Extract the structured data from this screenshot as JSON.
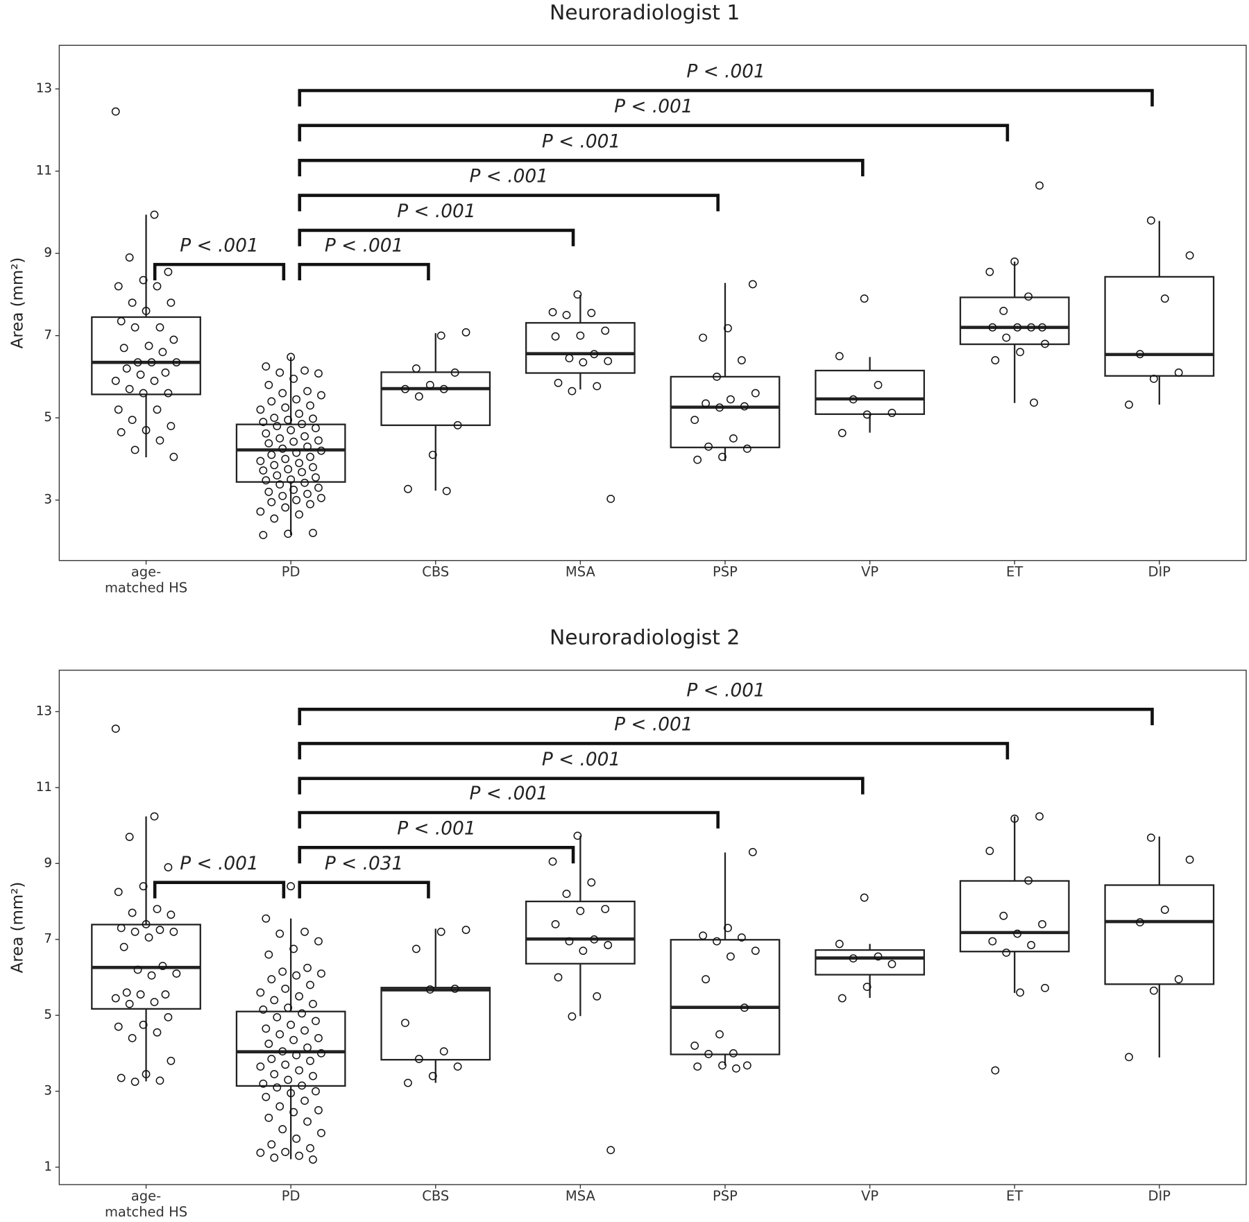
{
  "chart_data": [
    {
      "type": "box",
      "title": "Neuroradiologist 1",
      "y_label": "Area (mm²)",
      "categories": [
        "age-matched HS",
        "PD",
        "CBS",
        "MSA",
        "PSP",
        "VP",
        "ET",
        "DIP"
      ],
      "ylim": [
        1.53,
        14.06
      ],
      "yticks": [
        3,
        5,
        7,
        9,
        11,
        13
      ],
      "boxes": [
        {
          "q1": 5.57,
          "median": 6.35,
          "q3": 7.45,
          "whisker_low": 4.04,
          "whisker_high": 9.94,
          "points": [
            12.45,
            9.94,
            8.9,
            8.55,
            8.35,
            8.2,
            8.2,
            7.8,
            7.8,
            7.6,
            7.35,
            7.2,
            7.2,
            6.9,
            6.75,
            6.7,
            6.6,
            6.35,
            6.35,
            6.35,
            6.2,
            6.1,
            6.05,
            5.9,
            5.9,
            5.7,
            5.6,
            5.6,
            5.2,
            5.2,
            4.95,
            4.8,
            4.7,
            4.65,
            4.45,
            4.22,
            4.05
          ]
        },
        {
          "q1": 3.44,
          "median": 4.22,
          "q3": 4.84,
          "whisker_low": 2.15,
          "whisker_high": 6.48,
          "points": [
            6.48,
            6.25,
            6.15,
            6.1,
            6.08,
            5.95,
            5.8,
            5.65,
            5.6,
            5.55,
            5.45,
            5.4,
            5.3,
            5.25,
            5.2,
            5.1,
            5.0,
            4.98,
            4.95,
            4.9,
            4.85,
            4.8,
            4.75,
            4.7,
            4.62,
            4.55,
            4.5,
            4.45,
            4.42,
            4.38,
            4.3,
            4.25,
            4.2,
            4.15,
            4.1,
            4.05,
            4.0,
            3.95,
            3.9,
            3.85,
            3.8,
            3.75,
            3.72,
            3.68,
            3.6,
            3.55,
            3.5,
            3.48,
            3.42,
            3.38,
            3.3,
            3.25,
            3.2,
            3.15,
            3.1,
            3.05,
            3.0,
            2.95,
            2.9,
            2.82,
            2.72,
            2.65,
            2.55,
            2.2,
            2.18,
            2.15
          ]
        },
        {
          "q1": 4.82,
          "median": 5.71,
          "q3": 6.11,
          "whisker_low": 3.23,
          "whisker_high": 7.06,
          "points": [
            7.08,
            7.0,
            6.2,
            6.1,
            5.8,
            5.7,
            5.7,
            5.52,
            4.82,
            4.1,
            3.27,
            3.22
          ]
        },
        {
          "q1": 6.09,
          "median": 6.56,
          "q3": 7.31,
          "whisker_low": 5.69,
          "whisker_high": 7.99,
          "points": [
            8.0,
            7.57,
            7.55,
            7.5,
            7.12,
            7.0,
            6.98,
            6.55,
            6.45,
            6.38,
            6.35,
            5.85,
            5.77,
            5.65,
            3.03
          ]
        },
        {
          "q1": 4.28,
          "median": 5.26,
          "q3": 6.0,
          "whisker_low": 3.95,
          "whisker_high": 8.28,
          "points": [
            8.25,
            7.18,
            6.95,
            6.4,
            6.0,
            5.6,
            5.45,
            5.35,
            5.28,
            5.25,
            4.95,
            4.5,
            4.3,
            4.25,
            4.05,
            3.98
          ]
        },
        {
          "q1": 5.09,
          "median": 5.46,
          "q3": 6.15,
          "whisker_low": 4.64,
          "whisker_high": 6.48,
          "points": [
            7.9,
            6.5,
            5.8,
            5.45,
            5.12,
            5.08,
            4.63
          ]
        },
        {
          "q1": 6.79,
          "median": 7.2,
          "q3": 7.93,
          "whisker_low": 5.36,
          "whisker_high": 8.8,
          "points": [
            10.65,
            8.8,
            8.55,
            7.95,
            7.6,
            7.2,
            7.2,
            7.2,
            7.2,
            6.95,
            6.8,
            6.6,
            6.4,
            5.37
          ]
        },
        {
          "q1": 6.02,
          "median": 6.54,
          "q3": 8.43,
          "whisker_low": 5.32,
          "whisker_high": 9.79,
          "points": [
            9.8,
            8.95,
            7.9,
            6.55,
            6.1,
            5.95,
            5.32
          ]
        }
      ],
      "brackets": [
        {
          "from": "age-matched HS",
          "to": "PD",
          "y": 8.73,
          "label": "P < .001"
        },
        {
          "from": "PD",
          "to": "CBS",
          "y": 8.73,
          "label": "P < .001"
        },
        {
          "from": "PD",
          "to": "MSA",
          "y": 9.56,
          "label": "P < .001"
        },
        {
          "from": "PD",
          "to": "PSP",
          "y": 10.41,
          "label": "P < .001"
        },
        {
          "from": "PD",
          "to": "VP",
          "y": 11.26,
          "label": "P < .001"
        },
        {
          "from": "PD",
          "to": "ET",
          "y": 12.11,
          "label": "P < .001"
        },
        {
          "from": "PD",
          "to": "DIP",
          "y": 12.96,
          "label": "P < .001"
        }
      ]
    },
    {
      "type": "box",
      "title": "Neuroradiologist 2",
      "y_label": "Area (mm²)",
      "categories": [
        "age-matched HS",
        "PD",
        "CBS",
        "MSA",
        "PSP",
        "VP",
        "ET",
        "DIP"
      ],
      "ylim": [
        0.54,
        14.09
      ],
      "yticks": [
        1,
        3,
        5,
        7,
        9,
        11,
        13
      ],
      "boxes": [
        {
          "q1": 5.17,
          "median": 6.26,
          "q3": 7.39,
          "whisker_low": 3.26,
          "whisker_high": 10.24,
          "points": [
            12.55,
            10.24,
            9.7,
            8.9,
            8.4,
            8.25,
            7.8,
            7.7,
            7.65,
            7.4,
            7.3,
            7.25,
            7.2,
            7.2,
            7.05,
            6.8,
            6.3,
            6.2,
            6.1,
            6.05,
            5.6,
            5.55,
            5.55,
            5.45,
            5.35,
            5.3,
            4.95,
            4.75,
            4.7,
            4.55,
            4.4,
            3.8,
            3.45,
            3.35,
            3.28,
            3.25
          ]
        },
        {
          "q1": 3.14,
          "median": 4.04,
          "q3": 5.1,
          "whisker_low": 1.21,
          "whisker_high": 7.55,
          "points": [
            8.4,
            7.55,
            7.2,
            7.15,
            6.95,
            6.75,
            6.6,
            6.25,
            6.15,
            6.1,
            6.05,
            5.95,
            5.8,
            5.7,
            5.6,
            5.5,
            5.4,
            5.3,
            5.2,
            5.15,
            5.05,
            4.95,
            4.85,
            4.75,
            4.65,
            4.6,
            4.5,
            4.4,
            4.35,
            4.25,
            4.15,
            4.05,
            4.0,
            3.95,
            3.85,
            3.8,
            3.7,
            3.65,
            3.55,
            3.45,
            3.4,
            3.3,
            3.2,
            3.15,
            3.1,
            3.0,
            2.95,
            2.85,
            2.75,
            2.6,
            2.5,
            2.45,
            2.3,
            2.2,
            2.0,
            1.9,
            1.75,
            1.6,
            1.5,
            1.4,
            1.38,
            1.3,
            1.25,
            1.2
          ]
        },
        {
          "q1": 3.83,
          "median": 5.67,
          "q3": 5.73,
          "whisker_low": 3.22,
          "whisker_high": 7.28,
          "points": [
            7.25,
            7.2,
            6.75,
            5.7,
            5.68,
            4.8,
            4.05,
            3.85,
            3.65,
            3.4,
            3.22
          ]
        },
        {
          "q1": 6.36,
          "median": 7.01,
          "q3": 8.0,
          "whisker_low": 4.98,
          "whisker_high": 9.73,
          "points": [
            9.73,
            9.05,
            8.5,
            8.2,
            7.8,
            7.75,
            7.4,
            7.0,
            6.95,
            6.85,
            6.7,
            6.0,
            5.5,
            4.97,
            1.45
          ]
        },
        {
          "q1": 3.97,
          "median": 5.21,
          "q3": 6.99,
          "whisker_low": 3.68,
          "whisker_high": 9.29,
          "points": [
            9.3,
            7.3,
            7.1,
            7.05,
            6.95,
            6.7,
            6.55,
            5.95,
            5.2,
            4.5,
            4.2,
            4.0,
            3.98,
            3.68,
            3.68,
            3.65,
            3.6
          ]
        },
        {
          "q1": 6.07,
          "median": 6.51,
          "q3": 6.72,
          "whisker_low": 5.46,
          "whisker_high": 6.88,
          "points": [
            8.1,
            6.88,
            6.55,
            6.5,
            6.35,
            5.75,
            5.45
          ]
        },
        {
          "q1": 6.68,
          "median": 7.18,
          "q3": 8.54,
          "whisker_low": 5.59,
          "whisker_high": 10.24,
          "points": [
            10.24,
            10.18,
            9.33,
            8.55,
            7.62,
            7.4,
            7.15,
            6.95,
            6.85,
            6.65,
            5.72,
            5.6,
            3.55
          ]
        },
        {
          "q1": 5.82,
          "median": 7.47,
          "q3": 8.43,
          "whisker_low": 3.89,
          "whisker_high": 9.71,
          "points": [
            9.68,
            9.1,
            7.78,
            7.45,
            5.95,
            5.65,
            3.9
          ]
        }
      ],
      "brackets": [
        {
          "from": "age-matched HS",
          "to": "PD",
          "y": 8.5,
          "label": "P < .001"
        },
        {
          "from": "PD",
          "to": "CBS",
          "y": 8.5,
          "label": "P < .031"
        },
        {
          "from": "PD",
          "to": "MSA",
          "y": 9.42,
          "label": "P < .001"
        },
        {
          "from": "PD",
          "to": "PSP",
          "y": 10.34,
          "label": "P < .001"
        },
        {
          "from": "PD",
          "to": "VP",
          "y": 11.24,
          "label": "P < .001"
        },
        {
          "from": "PD",
          "to": "ET",
          "y": 12.16,
          "label": "P < .001"
        },
        {
          "from": "PD",
          "to": "DIP",
          "y": 13.06,
          "label": "P < .001"
        }
      ]
    }
  ]
}
